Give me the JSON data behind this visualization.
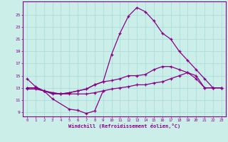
{
  "xlabel": "Windchill (Refroidissement éolien,°C)",
  "bg_color": "#cceee8",
  "grid_color": "#aadddd",
  "line_color": "#880088",
  "x": [
    0,
    1,
    2,
    3,
    4,
    5,
    6,
    7,
    8,
    9,
    10,
    11,
    12,
    13,
    14,
    15,
    16,
    17,
    18,
    19,
    20,
    21,
    22,
    23
  ],
  "line1_x": [
    0,
    1,
    2,
    3,
    5,
    6,
    7,
    8,
    9
  ],
  "line1_y": [
    14.5,
    13.2,
    12.5,
    11.2,
    9.5,
    9.3,
    8.8,
    9.2,
    12.5
  ],
  "line2": [
    13.0,
    13.0,
    12.5,
    12.2,
    12.0,
    12.2,
    12.5,
    12.8,
    13.5,
    14.0,
    18.5,
    22.0,
    24.8,
    26.2,
    25.5,
    24.0,
    22.0,
    21.0,
    19.0,
    17.5,
    16.0,
    14.5,
    13.0,
    13.0
  ],
  "line3": [
    13.0,
    13.0,
    12.5,
    12.0,
    12.0,
    12.2,
    12.5,
    12.8,
    13.5,
    14.0,
    14.2,
    14.5,
    15.0,
    15.0,
    15.2,
    16.0,
    16.5,
    16.5,
    16.0,
    15.5,
    15.0,
    13.0,
    13.0,
    13.0
  ],
  "line4": [
    12.8,
    12.8,
    12.5,
    12.2,
    12.0,
    12.0,
    12.0,
    12.0,
    12.2,
    12.5,
    12.8,
    13.0,
    13.2,
    13.5,
    13.5,
    13.8,
    14.0,
    14.5,
    15.0,
    15.5,
    14.5,
    13.0,
    13.0,
    13.0
  ],
  "yticks": [
    9,
    11,
    13,
    15,
    17,
    19,
    21,
    23,
    25
  ],
  "ylim": [
    8.3,
    27.2
  ],
  "xlim": [
    -0.5,
    23.5
  ]
}
